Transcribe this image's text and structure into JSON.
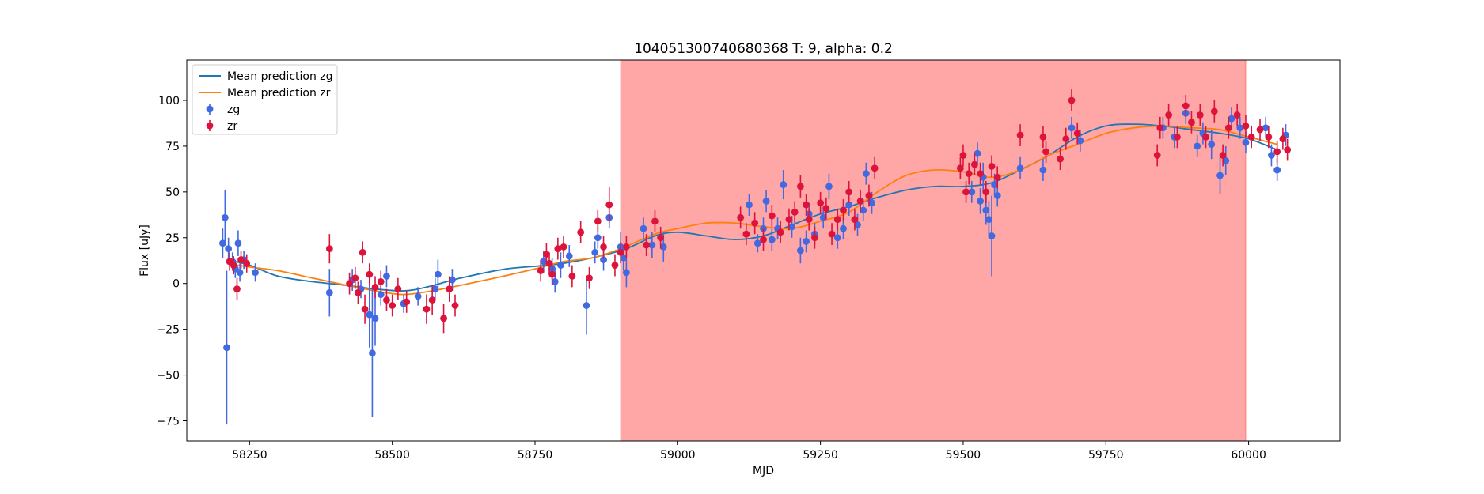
{
  "chart_data": {
    "type": "scatter",
    "title": "104051300740680368 T: 9, alpha: 0.2",
    "xlabel": "MJD",
    "ylabel": "Flux [uJy]",
    "xlim": [
      58140,
      60160
    ],
    "ylim": [
      -86,
      122
    ],
    "xticks": [
      58250,
      58500,
      58750,
      59000,
      59250,
      59500,
      59750,
      60000
    ],
    "yticks": [
      -75,
      -50,
      -25,
      0,
      25,
      50,
      75,
      100
    ],
    "legend_position": "upper left",
    "shaded_region": {
      "x0": 58900,
      "x1": 59995,
      "color": "#ff4d4d",
      "alpha": 0.5
    },
    "colors": {
      "zg_points": "#4169e1",
      "zr_points": "#dc143c",
      "zg_line": "#1f77b4",
      "zr_line": "#ff7f0e"
    },
    "legend": [
      {
        "label": "Mean prediction zg",
        "kind": "line",
        "color": "#1f77b4"
      },
      {
        "label": "Mean prediction zr",
        "kind": "line",
        "color": "#ff7f0e"
      },
      {
        "label": "zg",
        "kind": "errorbar",
        "color": "#4169e1"
      },
      {
        "label": "zr",
        "kind": "errorbar",
        "color": "#dc143c"
      }
    ],
    "mean_prediction": [
      {
        "name": "Mean prediction zg",
        "points": [
          [
            58210,
            13
          ],
          [
            58250,
            10
          ],
          [
            58300,
            4
          ],
          [
            58360,
            1
          ],
          [
            58420,
            -1
          ],
          [
            58470,
            -3
          ],
          [
            58520,
            -4
          ],
          [
            58560,
            -2
          ],
          [
            58620,
            3
          ],
          [
            58700,
            8
          ],
          [
            58800,
            11
          ],
          [
            58900,
            18
          ],
          [
            58960,
            26
          ],
          [
            59000,
            28
          ],
          [
            59050,
            26
          ],
          [
            59100,
            24
          ],
          [
            59150,
            26
          ],
          [
            59200,
            32
          ],
          [
            59250,
            38
          ],
          [
            59300,
            42
          ],
          [
            59350,
            47
          ],
          [
            59400,
            51
          ],
          [
            59450,
            53
          ],
          [
            59500,
            53
          ],
          [
            59550,
            55
          ],
          [
            59600,
            62
          ],
          [
            59650,
            70
          ],
          [
            59700,
            80
          ],
          [
            59750,
            86
          ],
          [
            59800,
            87
          ],
          [
            59850,
            86
          ],
          [
            59900,
            84
          ],
          [
            59950,
            82
          ],
          [
            60000,
            79
          ],
          [
            60050,
            73
          ]
        ]
      },
      {
        "name": "Mean prediction zr",
        "points": [
          [
            58210,
            11
          ],
          [
            58250,
            9
          ],
          [
            58300,
            7
          ],
          [
            58360,
            3
          ],
          [
            58420,
            -1
          ],
          [
            58470,
            -4
          ],
          [
            58520,
            -6
          ],
          [
            58570,
            -4
          ],
          [
            58620,
            -1
          ],
          [
            58680,
            3
          ],
          [
            58750,
            8
          ],
          [
            58800,
            12
          ],
          [
            58850,
            14
          ],
          [
            58900,
            19
          ],
          [
            58960,
            27
          ],
          [
            59000,
            30
          ],
          [
            59050,
            33
          ],
          [
            59100,
            33
          ],
          [
            59150,
            31
          ],
          [
            59200,
            30
          ],
          [
            59250,
            34
          ],
          [
            59300,
            39
          ],
          [
            59350,
            50
          ],
          [
            59400,
            59
          ],
          [
            59450,
            62
          ],
          [
            59500,
            61
          ],
          [
            59550,
            58
          ],
          [
            59600,
            62
          ],
          [
            59650,
            70
          ],
          [
            59700,
            76
          ],
          [
            59750,
            82
          ],
          [
            59800,
            85
          ],
          [
            59850,
            86
          ],
          [
            59900,
            85
          ],
          [
            59950,
            84
          ],
          [
            60000,
            80
          ],
          [
            60050,
            76
          ]
        ]
      }
    ],
    "series": [
      {
        "name": "zg",
        "color": "#4169e1",
        "points": [
          [
            58203,
            22,
            8
          ],
          [
            58207,
            36,
            15
          ],
          [
            58210,
            -35,
            42
          ],
          [
            58213,
            19,
            6
          ],
          [
            58220,
            12,
            5
          ],
          [
            58225,
            8,
            5
          ],
          [
            58230,
            22,
            7
          ],
          [
            58233,
            6,
            5
          ],
          [
            58240,
            13,
            5
          ],
          [
            58260,
            6,
            5
          ],
          [
            58390,
            -5,
            13
          ],
          [
            58430,
            2,
            6
          ],
          [
            58445,
            -3,
            5
          ],
          [
            58460,
            -17,
            18
          ],
          [
            58465,
            -38,
            35
          ],
          [
            58470,
            -19,
            15
          ],
          [
            58480,
            -6,
            6
          ],
          [
            58490,
            4,
            6
          ],
          [
            58520,
            -11,
            5
          ],
          [
            58545,
            -7,
            5
          ],
          [
            58575,
            -3,
            6
          ],
          [
            58580,
            5,
            8
          ],
          [
            58605,
            2,
            6
          ],
          [
            58765,
            12,
            6
          ],
          [
            58780,
            8,
            6
          ],
          [
            58785,
            1,
            6
          ],
          [
            58795,
            10,
            7
          ],
          [
            58810,
            15,
            6
          ],
          [
            58840,
            -12,
            16
          ],
          [
            58855,
            17,
            6
          ],
          [
            58860,
            25,
            6
          ],
          [
            58870,
            13,
            6
          ],
          [
            58880,
            36,
            6
          ],
          [
            58900,
            20,
            8
          ],
          [
            58905,
            14,
            7
          ],
          [
            58910,
            6,
            8
          ],
          [
            58940,
            30,
            6
          ],
          [
            58955,
            21,
            7
          ],
          [
            58975,
            20,
            8
          ],
          [
            59125,
            43,
            6
          ],
          [
            59140,
            22,
            5
          ],
          [
            59150,
            30,
            6
          ],
          [
            59155,
            45,
            6
          ],
          [
            59165,
            24,
            6
          ],
          [
            59175,
            30,
            6
          ],
          [
            59185,
            54,
            8
          ],
          [
            59200,
            31,
            6
          ],
          [
            59215,
            18,
            7
          ],
          [
            59225,
            23,
            6
          ],
          [
            59230,
            38,
            6
          ],
          [
            59240,
            27,
            6
          ],
          [
            59255,
            36,
            6
          ],
          [
            59265,
            53,
            7
          ],
          [
            59280,
            25,
            6
          ],
          [
            59290,
            30,
            6
          ],
          [
            59300,
            43,
            6
          ],
          [
            59315,
            32,
            6
          ],
          [
            59325,
            40,
            6
          ],
          [
            59330,
            60,
            6
          ],
          [
            59340,
            44,
            6
          ],
          [
            59515,
            50,
            6
          ],
          [
            59525,
            71,
            6
          ],
          [
            59530,
            45,
            7
          ],
          [
            59535,
            58,
            8
          ],
          [
            59540,
            40,
            8
          ],
          [
            59545,
            35,
            10
          ],
          [
            59550,
            26,
            22
          ],
          [
            59555,
            54,
            6
          ],
          [
            59560,
            48,
            6
          ],
          [
            59600,
            63,
            6
          ],
          [
            59640,
            62,
            6
          ],
          [
            59690,
            85,
            6
          ],
          [
            59705,
            78,
            6
          ],
          [
            59850,
            85,
            6
          ],
          [
            59870,
            80,
            6
          ],
          [
            59890,
            93,
            6
          ],
          [
            59910,
            75,
            6
          ],
          [
            59920,
            82,
            6
          ],
          [
            59935,
            76,
            8
          ],
          [
            59950,
            59,
            10
          ],
          [
            59960,
            67,
            8
          ],
          [
            59970,
            90,
            6
          ],
          [
            59985,
            85,
            6
          ],
          [
            59995,
            77,
            6
          ],
          [
            60030,
            85,
            6
          ],
          [
            60040,
            70,
            6
          ],
          [
            60050,
            62,
            6
          ],
          [
            60065,
            81,
            6
          ]
        ]
      },
      {
        "name": "zr",
        "color": "#dc143c",
        "points": [
          [
            58215,
            12,
            5
          ],
          [
            58222,
            10,
            5
          ],
          [
            58228,
            -3,
            6
          ],
          [
            58235,
            13,
            5
          ],
          [
            58245,
            11,
            5
          ],
          [
            58390,
            19,
            8
          ],
          [
            58425,
            0,
            6
          ],
          [
            58435,
            3,
            6
          ],
          [
            58440,
            -5,
            6
          ],
          [
            58448,
            17,
            6
          ],
          [
            58452,
            -14,
            8
          ],
          [
            58460,
            5,
            6
          ],
          [
            58470,
            -2,
            6
          ],
          [
            58480,
            1,
            6
          ],
          [
            58490,
            -9,
            6
          ],
          [
            58500,
            -12,
            6
          ],
          [
            58510,
            -3,
            6
          ],
          [
            58525,
            -10,
            6
          ],
          [
            58560,
            -14,
            8
          ],
          [
            58570,
            -9,
            8
          ],
          [
            58590,
            -19,
            8
          ],
          [
            58600,
            -3,
            7
          ],
          [
            58610,
            -12,
            6
          ],
          [
            58760,
            7,
            6
          ],
          [
            58770,
            16,
            6
          ],
          [
            58775,
            11,
            6
          ],
          [
            58780,
            5,
            6
          ],
          [
            58790,
            19,
            6
          ],
          [
            58800,
            20,
            6
          ],
          [
            58815,
            4,
            6
          ],
          [
            58830,
            28,
            6
          ],
          [
            58845,
            3,
            6
          ],
          [
            58860,
            34,
            6
          ],
          [
            58870,
            20,
            6
          ],
          [
            58880,
            43,
            10
          ],
          [
            58890,
            10,
            6
          ],
          [
            58900,
            17,
            6
          ],
          [
            58910,
            20,
            6
          ],
          [
            58945,
            21,
            6
          ],
          [
            58960,
            34,
            6
          ],
          [
            58970,
            25,
            6
          ],
          [
            59110,
            36,
            6
          ],
          [
            59120,
            27,
            6
          ],
          [
            59135,
            33,
            6
          ],
          [
            59150,
            24,
            6
          ],
          [
            59165,
            37,
            6
          ],
          [
            59180,
            28,
            6
          ],
          [
            59195,
            35,
            6
          ],
          [
            59205,
            39,
            6
          ],
          [
            59215,
            53,
            6
          ],
          [
            59225,
            43,
            6
          ],
          [
            59230,
            35,
            6
          ],
          [
            59240,
            25,
            6
          ],
          [
            59250,
            44,
            6
          ],
          [
            59260,
            41,
            6
          ],
          [
            59270,
            27,
            6
          ],
          [
            59280,
            35,
            6
          ],
          [
            59290,
            40,
            6
          ],
          [
            59300,
            50,
            6
          ],
          [
            59310,
            35,
            6
          ],
          [
            59320,
            45,
            6
          ],
          [
            59335,
            48,
            6
          ],
          [
            59345,
            63,
            6
          ],
          [
            59495,
            63,
            6
          ],
          [
            59500,
            70,
            6
          ],
          [
            59505,
            50,
            6
          ],
          [
            59510,
            60,
            6
          ],
          [
            59520,
            65,
            6
          ],
          [
            59530,
            60,
            6
          ],
          [
            59540,
            50,
            6
          ],
          [
            59550,
            64,
            6
          ],
          [
            59560,
            58,
            6
          ],
          [
            59600,
            81,
            6
          ],
          [
            59640,
            80,
            6
          ],
          [
            59645,
            72,
            6
          ],
          [
            59670,
            68,
            6
          ],
          [
            59680,
            79,
            6
          ],
          [
            59690,
            100,
            6
          ],
          [
            59700,
            82,
            6
          ],
          [
            59840,
            70,
            6
          ],
          [
            59845,
            85,
            6
          ],
          [
            59860,
            92,
            6
          ],
          [
            59875,
            80,
            6
          ],
          [
            59890,
            97,
            6
          ],
          [
            59900,
            88,
            6
          ],
          [
            59915,
            92,
            6
          ],
          [
            59925,
            80,
            6
          ],
          [
            59940,
            94,
            6
          ],
          [
            59955,
            70,
            6
          ],
          [
            59965,
            85,
            6
          ],
          [
            59980,
            92,
            6
          ],
          [
            59995,
            86,
            6
          ],
          [
            60005,
            80,
            6
          ],
          [
            60020,
            84,
            6
          ],
          [
            60035,
            80,
            6
          ],
          [
            60050,
            72,
            6
          ],
          [
            60060,
            79,
            6
          ],
          [
            60068,
            73,
            6
          ]
        ]
      }
    ]
  }
}
